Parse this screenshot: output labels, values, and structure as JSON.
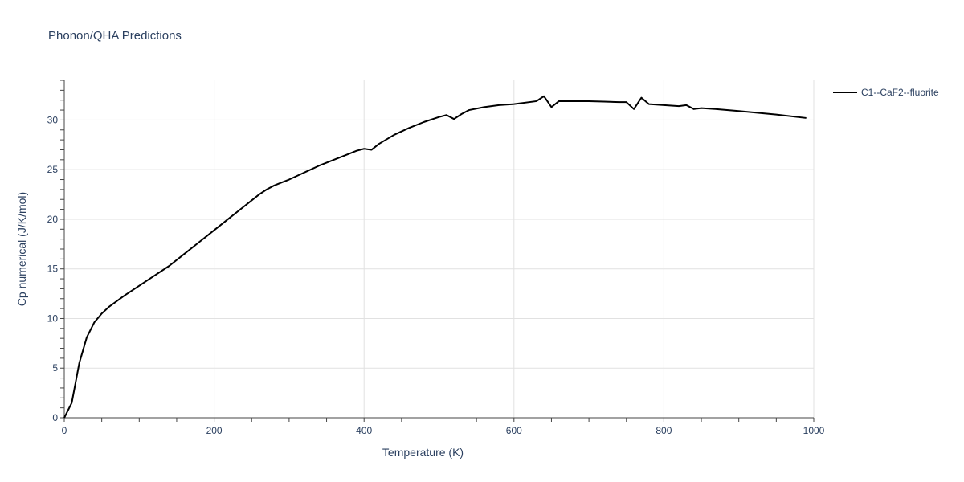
{
  "chart_data": {
    "type": "line",
    "title": "Phonon/QHA Predictions",
    "xlabel": "Temperature (K)",
    "ylabel": "Cp numerical (J/K/mol)",
    "xlim": [
      0,
      1000
    ],
    "ylim": [
      0,
      34
    ],
    "xticks": [
      0,
      200,
      400,
      600,
      800,
      1000
    ],
    "yticks": [
      0,
      5,
      10,
      15,
      20,
      25,
      30
    ],
    "grid": true,
    "legend": "top-right",
    "series": [
      {
        "name": "C1--CaF2--fluorite",
        "color": "#000000",
        "x": [
          0,
          10,
          20,
          30,
          40,
          50,
          60,
          80,
          100,
          120,
          140,
          160,
          180,
          200,
          220,
          240,
          260,
          270,
          280,
          290,
          300,
          320,
          340,
          360,
          380,
          390,
          400,
          410,
          420,
          440,
          460,
          480,
          500,
          510,
          520,
          530,
          540,
          560,
          580,
          600,
          620,
          630,
          640,
          650,
          660,
          680,
          700,
          720,
          740,
          750,
          760,
          770,
          780,
          800,
          820,
          830,
          840,
          850,
          870,
          900,
          950,
          990
        ],
        "y": [
          0,
          1.5,
          5.5,
          8.1,
          9.6,
          10.5,
          11.2,
          12.3,
          13.3,
          14.3,
          15.3,
          16.5,
          17.7,
          18.9,
          20.1,
          21.3,
          22.5,
          23.0,
          23.4,
          23.7,
          24.0,
          24.7,
          25.4,
          26.0,
          26.6,
          26.9,
          27.1,
          27.0,
          27.6,
          28.5,
          29.2,
          29.8,
          30.3,
          30.5,
          30.1,
          30.6,
          31.0,
          31.3,
          31.5,
          31.6,
          31.8,
          31.9,
          32.4,
          31.3,
          31.9,
          31.9,
          31.9,
          31.85,
          31.8,
          31.8,
          31.1,
          32.25,
          31.6,
          31.5,
          31.4,
          31.5,
          31.1,
          31.2,
          31.1,
          30.9,
          30.55,
          30.2
        ]
      }
    ]
  }
}
